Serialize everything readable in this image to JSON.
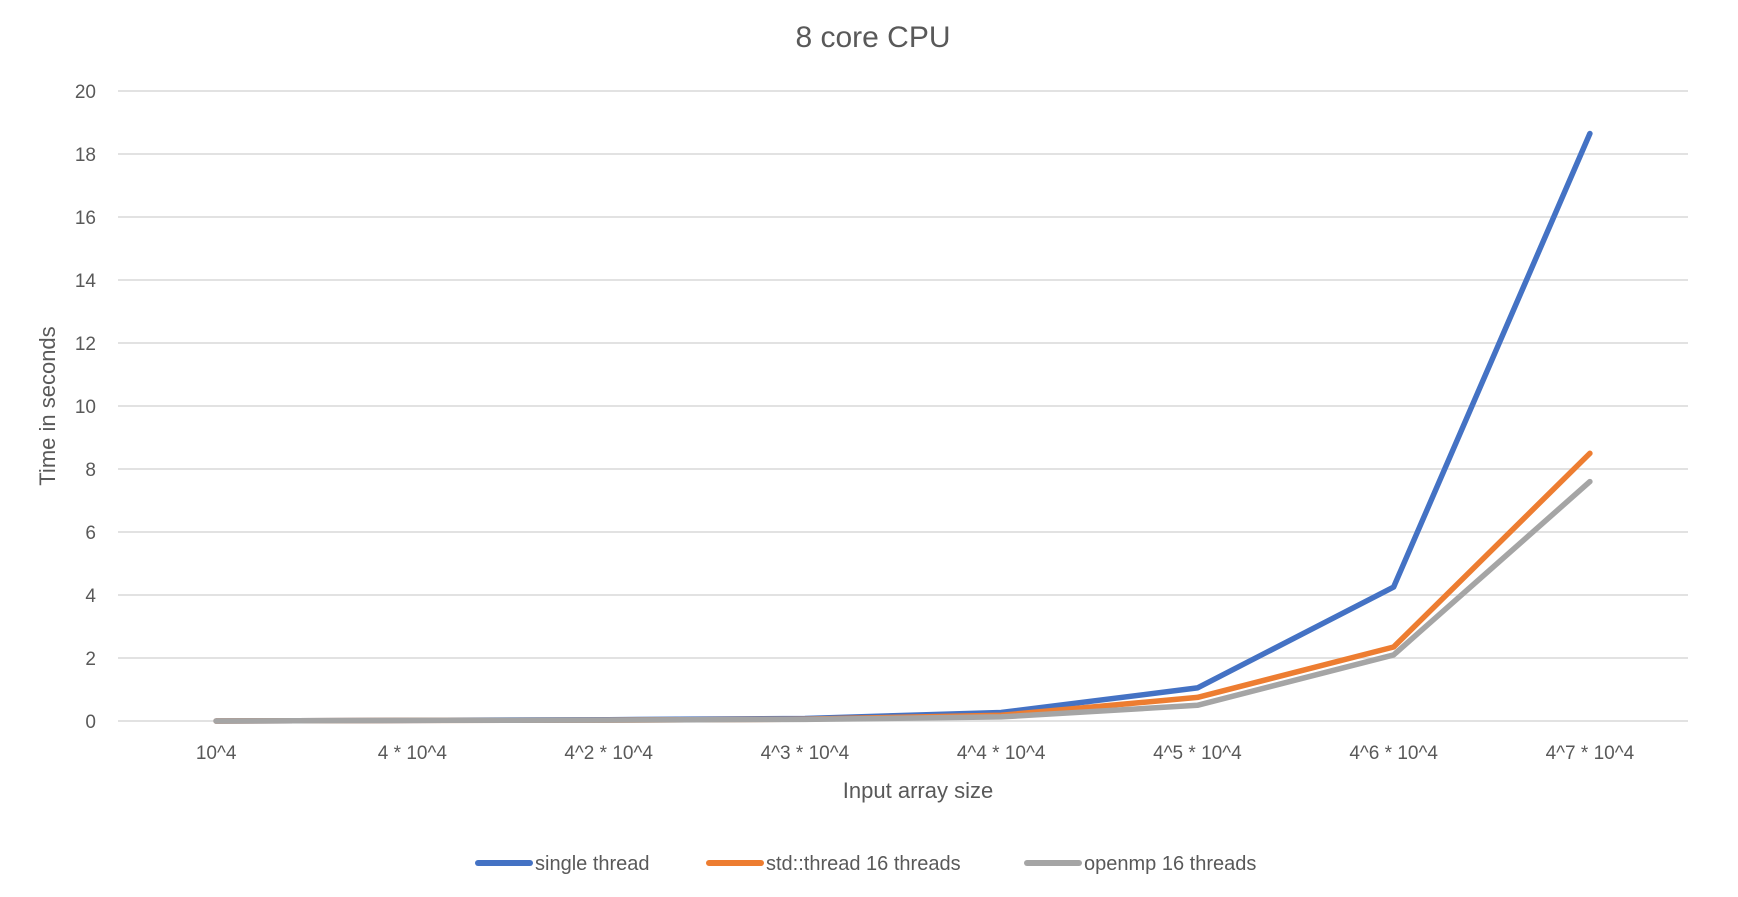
{
  "chart_data": {
    "type": "line",
    "title": "8 core CPU",
    "xlabel": "Input array size",
    "ylabel": "Time in seconds",
    "categories": [
      "10^4",
      "4 * 10^4",
      "4^2 * 10^4",
      "4^3 * 10^4",
      "4^4 * 10^4",
      "4^5 * 10^4",
      "4^6 * 10^4",
      "4^7 * 10^4"
    ],
    "ylim": [
      0,
      20
    ],
    "yticks": [
      0,
      2,
      4,
      6,
      8,
      10,
      12,
      14,
      16,
      18,
      20
    ],
    "grid": true,
    "legend_position": "bottom",
    "series": [
      {
        "name": "single thread",
        "color": "#4472C4",
        "values": [
          0.0,
          0.02,
          0.04,
          0.08,
          0.27,
          1.05,
          4.25,
          18.65
        ]
      },
      {
        "name": "std::thread 16 threads",
        "color": "#ED7D31",
        "values": [
          0.0,
          0.02,
          0.03,
          0.06,
          0.18,
          0.75,
          2.35,
          8.5
        ]
      },
      {
        "name": "openmp 16 threads",
        "color": "#A5A5A5",
        "values": [
          0.0,
          0.02,
          0.03,
          0.05,
          0.13,
          0.5,
          2.1,
          7.6
        ]
      }
    ]
  }
}
